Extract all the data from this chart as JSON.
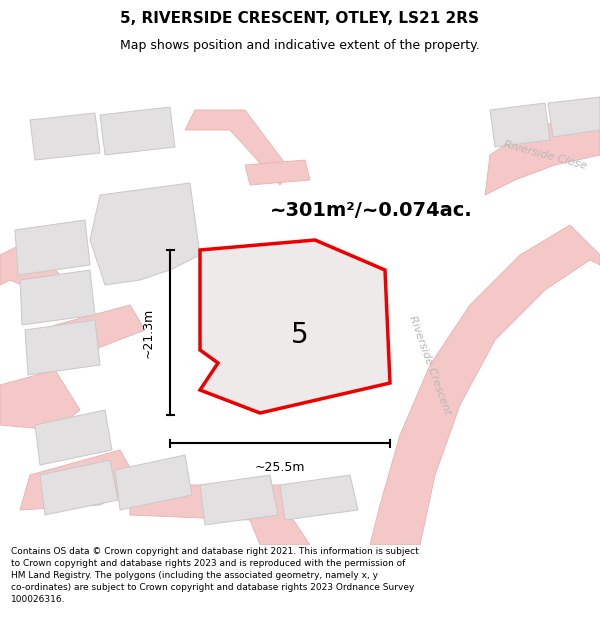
{
  "title": "5, RIVERSIDE CRESCENT, OTLEY, LS21 2RS",
  "subtitle": "Map shows position and indicative extent of the property.",
  "area_text": "~301m²/~0.074ac.",
  "number_label": "5",
  "dim_height": "~21.3m",
  "dim_width": "~25.5m",
  "road_label_crescent": "Riverside Crescent",
  "road_label_close": "Riverside Close",
  "footer": "Contains OS data © Crown copyright and database right 2021. This information is subject to Crown copyright and database rights 2023 and is reproduced with the permission of HM Land Registry. The polygons (including the associated geometry, namely x, y co-ordinates) are subject to Crown copyright and database rights 2023 Ordnance Survey 100026316.",
  "bg_color": "#eeecec",
  "road_color": "#f5c8c8",
  "road_edge": "#e8b0b0",
  "building_fill": "#e2e0e0",
  "building_edge": "#c8c8c8",
  "plot_fill": "#eeeaea",
  "plot_edge": "#ee0000",
  "title_fontsize": 11,
  "subtitle_fontsize": 9,
  "footer_fontsize": 6.5,
  "area_fontsize": 14,
  "number_fontsize": 20,
  "dim_fontsize": 9,
  "road_label_fontsize": 8
}
